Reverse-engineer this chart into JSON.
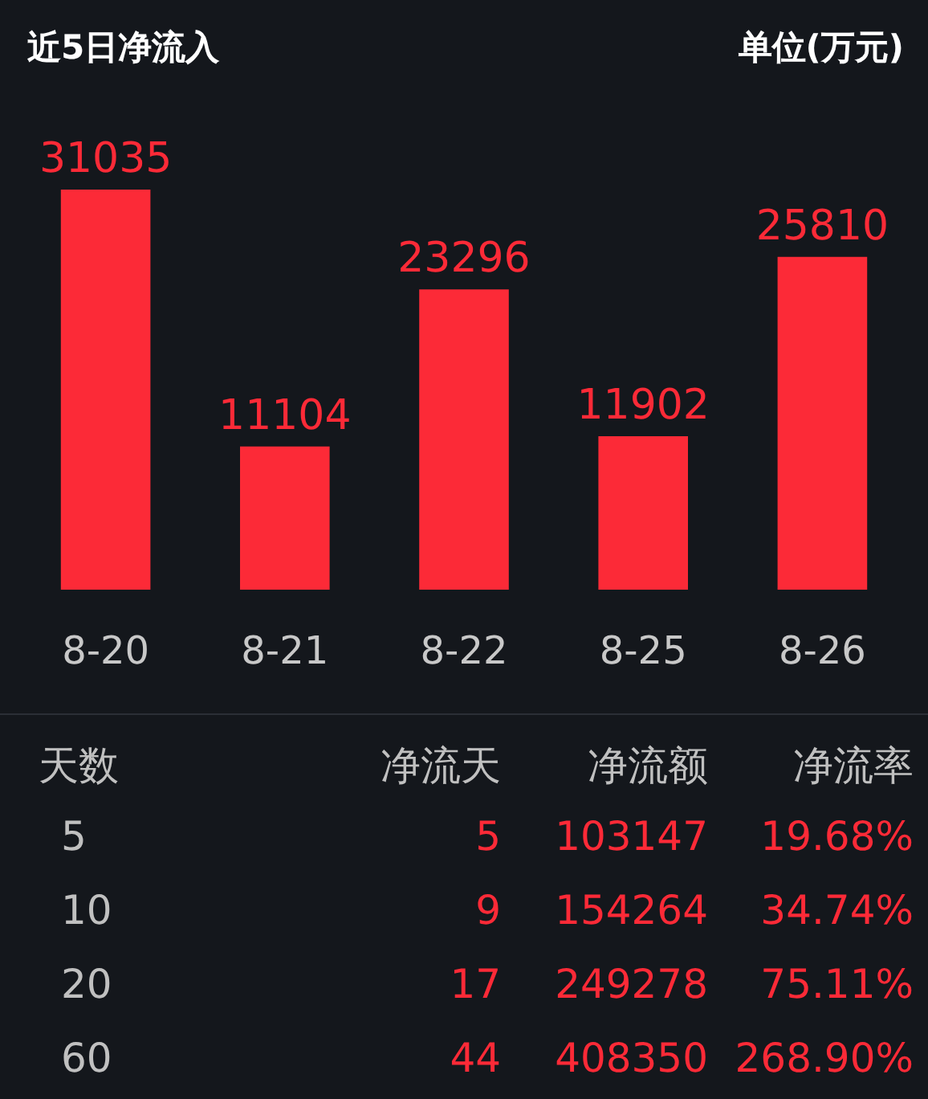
{
  "chart_data": [
    {
      "type": "bar",
      "title": "近5日净流入",
      "ylabel": "单位(万元)",
      "categories": [
        "8-20",
        "8-21",
        "8-22",
        "8-25",
        "8-26"
      ],
      "values": [
        31035,
        11104,
        23296,
        11902,
        25810
      ],
      "color": "#fc2a37",
      "data_labels": true
    },
    {
      "type": "other",
      "annotations": [
        "天数",
        "净流天",
        "净流额",
        "净流率",
        "5",
        "5",
        "103147",
        "19.68%",
        "10",
        "9",
        "154264",
        "34.74%",
        "20",
        "17",
        "249278",
        "75.11%",
        "60",
        "44",
        "408350",
        "268.90%"
      ]
    }
  ]
}
